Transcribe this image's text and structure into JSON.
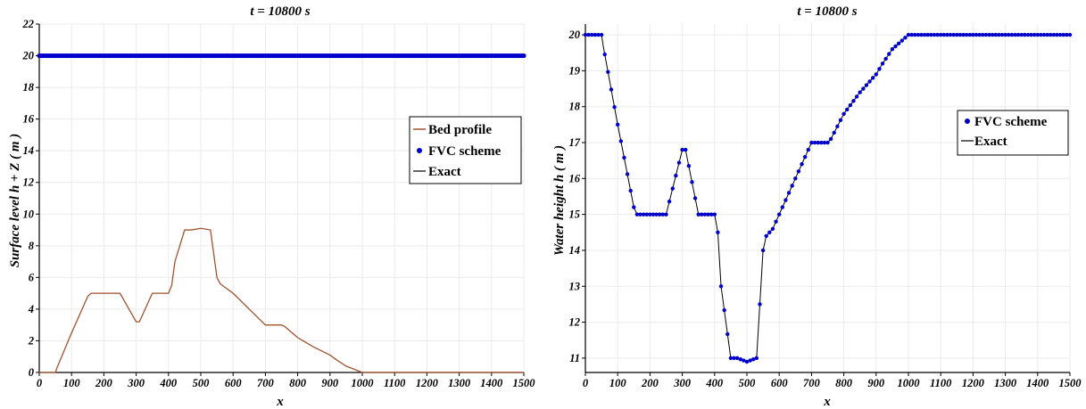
{
  "chart_data": [
    {
      "type": "line",
      "title": "t =  10800 s",
      "xlabel": "x",
      "ylabel": "Surface level h + Z ( m )",
      "xlim": [
        0,
        1500
      ],
      "ylim": [
        0,
        22
      ],
      "xticks": [
        "0",
        "100",
        "200",
        "300",
        "400",
        "500",
        "600",
        "700",
        "800",
        "900",
        "1000",
        "1100",
        "1200",
        "1300",
        "1400",
        "1500"
      ],
      "yticks": [
        "0",
        "2",
        "4",
        "6",
        "8",
        "10",
        "12",
        "14",
        "16",
        "18",
        "20",
        "22"
      ],
      "grid": true,
      "legend_position": "right",
      "series": [
        {
          "name": "Bed profile",
          "color": "#a0522d",
          "style": "line",
          "x": [
            0,
            50,
            55,
            100,
            150,
            160,
            200,
            250,
            300,
            310,
            350,
            400,
            410,
            420,
            450,
            470,
            500,
            530,
            550,
            560,
            600,
            650,
            700,
            750,
            760,
            800,
            850,
            900,
            920,
            950,
            1000,
            1500
          ],
          "y": [
            0,
            0,
            0.3,
            2.5,
            4.8,
            5.0,
            5.0,
            5.0,
            3.2,
            3.2,
            5.0,
            5.0,
            5.5,
            7.0,
            9.0,
            9.0,
            9.1,
            9.0,
            6.0,
            5.6,
            5.0,
            4.0,
            3.0,
            3.0,
            2.9,
            2.2,
            1.6,
            1.1,
            0.8,
            0.4,
            0,
            0
          ]
        },
        {
          "name": "FVC scheme",
          "color": "#0000cc",
          "style": "markers",
          "x_start": 0,
          "x_end": 1500,
          "x_step": 5,
          "value": 20
        },
        {
          "name": "Exact",
          "color": "#000000",
          "style": "line",
          "x": [
            0,
            1500
          ],
          "y": [
            20,
            20
          ]
        }
      ]
    },
    {
      "type": "line",
      "title": "t =  10800 s",
      "xlabel": "x",
      "ylabel": "Water height h  ( m )",
      "xlim": [
        0,
        1500
      ],
      "ylim": [
        10.6,
        20.3
      ],
      "xticks": [
        "0",
        "100",
        "200",
        "300",
        "400",
        "500",
        "600",
        "700",
        "800",
        "900",
        "1000",
        "1100",
        "1200",
        "1300",
        "1400",
        "1500"
      ],
      "yticks": [
        "11",
        "12",
        "13",
        "14",
        "15",
        "16",
        "17",
        "18",
        "19",
        "20"
      ],
      "grid": true,
      "legend_position": "right",
      "series": [
        {
          "name": "FVC scheme",
          "color": "#0000cc",
          "style": "markers",
          "x_step": 10,
          "x_start": 0,
          "x_end": 1500
        },
        {
          "name": "Exact",
          "color": "#000000",
          "style": "line",
          "x": [
            0,
            45,
            50,
            55,
            100,
            150,
            160,
            200,
            250,
            300,
            310,
            350,
            400,
            410,
            420,
            450,
            470,
            500,
            530,
            550,
            560,
            580,
            600,
            650,
            700,
            750,
            760,
            800,
            850,
            900,
            920,
            950,
            1000,
            1500
          ],
          "y": [
            20,
            20,
            20,
            19.7,
            17.5,
            15.2,
            15.0,
            15.0,
            15.0,
            16.8,
            16.8,
            15.0,
            15.0,
            14.5,
            13.0,
            11.0,
            11.0,
            10.9,
            11.0,
            14.0,
            14.4,
            14.6,
            15.0,
            16.0,
            17.0,
            17.0,
            17.1,
            17.8,
            18.4,
            18.9,
            19.2,
            19.6,
            20.0,
            20.0
          ]
        }
      ]
    }
  ]
}
